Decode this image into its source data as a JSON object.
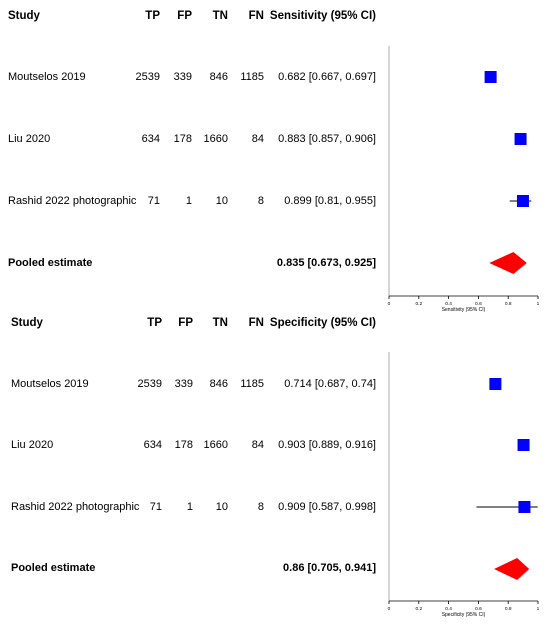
{
  "chart_data": [
    {
      "type": "forest",
      "headers": {
        "study": "Study",
        "tp": "TP",
        "fp": "FP",
        "tn": "TN",
        "fn": "FN",
        "estimate": "Sensitivity (95% CI)"
      },
      "studies": [
        {
          "name": "Moutselos 2019",
          "tp": "2539",
          "fp": "339",
          "tn": "846",
          "fn": "1185",
          "ci_text": "0.682 [0.667, 0.697]",
          "value": 0.682,
          "lower": 0.667,
          "upper": 0.697
        },
        {
          "name": "Liu 2020",
          "tp": "634",
          "fp": "178",
          "tn": "1660",
          "fn": "84",
          "ci_text": "0.883 [0.857, 0.906]",
          "value": 0.883,
          "lower": 0.857,
          "upper": 0.906
        },
        {
          "name": "Rashid 2022 photographic",
          "tp": "71",
          "fp": "1",
          "tn": "10",
          "fn": "8",
          "ci_text": "0.899 [0.81, 0.955]",
          "value": 0.899,
          "lower": 0.81,
          "upper": 0.955
        }
      ],
      "pooled": {
        "label": "Pooled estimate",
        "ci_text": "0.835 [0.673, 0.925]",
        "value": 0.835,
        "lower": 0.673,
        "upper": 0.925
      },
      "xlabel": "Sensitivity (95% CI)",
      "xlim": [
        0,
        1
      ],
      "xticks": [
        "0",
        "0.2",
        "0.4",
        "0.6",
        "0.8",
        "1"
      ],
      "marker_color": "#0000ff",
      "diamond_color": "#ff0000"
    },
    {
      "type": "forest",
      "headers": {
        "study": "Study",
        "tp": "TP",
        "fp": "FP",
        "tn": "TN",
        "fn": "FN",
        "estimate": "Specificity (95% CI)"
      },
      "studies": [
        {
          "name": "Moutselos 2019",
          "tp": "2539",
          "fp": "339",
          "tn": "846",
          "fn": "1185",
          "ci_text": "0.714 [0.687, 0.74]",
          "value": 0.714,
          "lower": 0.687,
          "upper": 0.74
        },
        {
          "name": "Liu 2020",
          "tp": "634",
          "fp": "178",
          "tn": "1660",
          "fn": "84",
          "ci_text": "0.903 [0.889, 0.916]",
          "value": 0.903,
          "lower": 0.889,
          "upper": 0.916
        },
        {
          "name": "Rashid 2022 photographic",
          "tp": "71",
          "fp": "1",
          "tn": "10",
          "fn": "8",
          "ci_text": "0.909 [0.587, 0.998]",
          "value": 0.909,
          "lower": 0.587,
          "upper": 0.998
        }
      ],
      "pooled": {
        "label": "Pooled estimate",
        "ci_text": "0.86 [0.705, 0.941]",
        "value": 0.86,
        "lower": 0.705,
        "upper": 0.941
      },
      "xlabel": "Specificity (95% CI)",
      "xlim": [
        0,
        1
      ],
      "xticks": [
        "0",
        "0.2",
        "0.4",
        "0.6",
        "0.8",
        "1"
      ],
      "marker_color": "#0000ff",
      "diamond_color": "#ff0000"
    }
  ]
}
